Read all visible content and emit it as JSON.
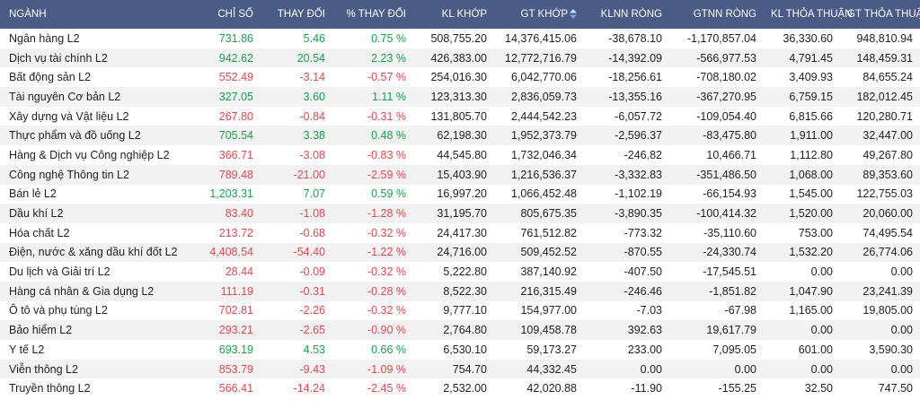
{
  "headers": {
    "sector": "NGÀNH",
    "index": "CHỈ SỐ",
    "change": "THAY ĐỔI",
    "pct_change": "% THAY ĐỔI",
    "kl_khop": "KL KHỚP",
    "gt_khop": "GT KHỚP",
    "klnn": "KLNN RÒNG",
    "gtnn": "GTNN RÒNG",
    "kl_tt": "KL THỎA THUẬN",
    "gt_tt": "GT THỎA THUẬN"
  },
  "colors": {
    "header_bg": "#4a5b86",
    "up": "#16a34a",
    "down": "#e5484d",
    "sort_up": "#cfd8ec",
    "sort_down": "#6aa9f0"
  },
  "rows": [
    {
      "name": "Ngân hàng L2",
      "index": "731.86",
      "change": "5.46",
      "pct": "0.75 %",
      "kl": "508,755.20",
      "gt": "14,376,415.06",
      "klnn": "-38,678.10",
      "gtnn": "-1,170,857.04",
      "kltt": "36,330.60",
      "gttt": "948,810.94",
      "dir": "up"
    },
    {
      "name": "Dịch vụ tài chính L2",
      "index": "942.62",
      "change": "20.54",
      "pct": "2.23 %",
      "kl": "426,383.00",
      "gt": "12,772,716.79",
      "klnn": "-14,392.09",
      "gtnn": "-566,977.53",
      "kltt": "4,791.45",
      "gttt": "148,459.31",
      "dir": "up"
    },
    {
      "name": "Bất động sản L2",
      "index": "552.49",
      "change": "-3.14",
      "pct": "-0.57 %",
      "kl": "254,016.30",
      "gt": "6,042,770.06",
      "klnn": "-18,256.61",
      "gtnn": "-708,180.02",
      "kltt": "3,409.93",
      "gttt": "84,655.24",
      "dir": "down"
    },
    {
      "name": "Tài nguyên Cơ bản L2",
      "index": "327.05",
      "change": "3.60",
      "pct": "1.11 %",
      "kl": "123,313.30",
      "gt": "2,836,059.73",
      "klnn": "-13,355.16",
      "gtnn": "-367,270.95",
      "kltt": "6,759.15",
      "gttt": "182,012.45",
      "dir": "up"
    },
    {
      "name": "Xây dựng và Vật liệu L2",
      "index": "267.80",
      "change": "-0.84",
      "pct": "-0.31 %",
      "kl": "131,805.70",
      "gt": "2,444,542.23",
      "klnn": "-6,057.72",
      "gtnn": "-109,054.40",
      "kltt": "6,815.66",
      "gttt": "120,280.71",
      "dir": "down"
    },
    {
      "name": "Thực phẩm và đồ uống L2",
      "index": "705.54",
      "change": "3.38",
      "pct": "0.48 %",
      "kl": "62,198.30",
      "gt": "1,952,373.79",
      "klnn": "-2,596.37",
      "gtnn": "-83,475.80",
      "kltt": "1,911.00",
      "gttt": "32,447.00",
      "dir": "up"
    },
    {
      "name": "Hàng & Dịch vụ Công nghiệp L2",
      "index": "366.71",
      "change": "-3.08",
      "pct": "-0.83 %",
      "kl": "44,545.80",
      "gt": "1,732,046.34",
      "klnn": "-246.82",
      "gtnn": "10,466.71",
      "kltt": "1,112.80",
      "gttt": "49,267.80",
      "dir": "down"
    },
    {
      "name": "Công nghệ Thông tin L2",
      "index": "789.48",
      "change": "-21.00",
      "pct": "-2.59 %",
      "kl": "15,403.90",
      "gt": "1,216,536.37",
      "klnn": "-3,332.83",
      "gtnn": "-351,486.50",
      "kltt": "1,068.00",
      "gttt": "89,353.60",
      "dir": "down"
    },
    {
      "name": "Bán lẻ L2",
      "index": "1,203.31",
      "change": "7.07",
      "pct": "0.59 %",
      "kl": "16,997.20",
      "gt": "1,066,452.48",
      "klnn": "-1,102.19",
      "gtnn": "-66,154.93",
      "kltt": "1,545.00",
      "gttt": "122,755.03",
      "dir": "up"
    },
    {
      "name": "Dầu khí L2",
      "index": "83.40",
      "change": "-1.08",
      "pct": "-1.28 %",
      "kl": "31,195.70",
      "gt": "805,675.35",
      "klnn": "-3,890.35",
      "gtnn": "-100,414.32",
      "kltt": "1,520.00",
      "gttt": "20,060.00",
      "dir": "down"
    },
    {
      "name": "Hóa chất L2",
      "index": "213.72",
      "change": "-0.68",
      "pct": "-0.32 %",
      "kl": "24,417.30",
      "gt": "761,512.82",
      "klnn": "-773.32",
      "gtnn": "-35,110.60",
      "kltt": "753.00",
      "gttt": "74,495.54",
      "dir": "down"
    },
    {
      "name": "Điện, nước & xăng dầu khí đốt L2",
      "index": "4,408.54",
      "change": "-54.40",
      "pct": "-1.22 %",
      "kl": "24,716.00",
      "gt": "509,452.52",
      "klnn": "-870.55",
      "gtnn": "-24,330.74",
      "kltt": "1,532.20",
      "gttt": "26,774.06",
      "dir": "down"
    },
    {
      "name": "Du lịch và Giải trí L2",
      "index": "28.44",
      "change": "-0.09",
      "pct": "-0.32 %",
      "kl": "5,222.80",
      "gt": "387,140.92",
      "klnn": "-407.50",
      "gtnn": "-17,545.51",
      "kltt": "0.00",
      "gttt": "0.00",
      "dir": "down"
    },
    {
      "name": "Hàng cá nhân & Gia dụng L2",
      "index": "111.19",
      "change": "-0.31",
      "pct": "-0.28 %",
      "kl": "8,522.30",
      "gt": "216,315.49",
      "klnn": "-246.46",
      "gtnn": "-1,851.82",
      "kltt": "1,047.90",
      "gttt": "23,241.39",
      "dir": "down"
    },
    {
      "name": "Ô tô và phụ tùng L2",
      "index": "702.81",
      "change": "-2.26",
      "pct": "-0.32 %",
      "kl": "9,777.10",
      "gt": "154,977.00",
      "klnn": "-7.03",
      "gtnn": "-67.98",
      "kltt": "1,165.00",
      "gttt": "19,805.00",
      "dir": "down"
    },
    {
      "name": "Bảo hiểm L2",
      "index": "293.21",
      "change": "-2.65",
      "pct": "-0.90 %",
      "kl": "2,764.80",
      "gt": "109,458.78",
      "klnn": "392.63",
      "gtnn": "19,617.79",
      "kltt": "0.00",
      "gttt": "0.00",
      "dir": "down"
    },
    {
      "name": "Y tế L2",
      "index": "693.19",
      "change": "4.53",
      "pct": "0.66 %",
      "kl": "6,530.10",
      "gt": "59,173.27",
      "klnn": "233.00",
      "gtnn": "7,095.05",
      "kltt": "601.00",
      "gttt": "3,590.30",
      "dir": "up"
    },
    {
      "name": "Viễn thông L2",
      "index": "853.79",
      "change": "-9.43",
      "pct": "-1.09 %",
      "kl": "754.70",
      "gt": "44,332.45",
      "klnn": "0.00",
      "gtnn": "0.00",
      "kltt": "0.00",
      "gttt": "0.00",
      "dir": "down"
    },
    {
      "name": "Truyền thông L2",
      "index": "566.41",
      "change": "-14.24",
      "pct": "-2.45 %",
      "kl": "2,532.00",
      "gt": "42,020.88",
      "klnn": "-11.90",
      "gtnn": "-155.25",
      "kltt": "32.50",
      "gttt": "747.50",
      "dir": "down"
    }
  ]
}
